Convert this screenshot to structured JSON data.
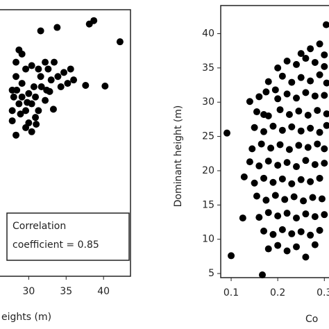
{
  "chart_data": [
    {
      "type": "scatter",
      "x_label": "eights (m)",
      "color": "#000000",
      "annotation": [
        "Correlation",
        "coefficient = 0.85"
      ],
      "xlim": [
        25.7,
        43.6
      ],
      "ylim": [
        4.4,
        43.5
      ],
      "xticks": [
        30,
        35,
        40
      ],
      "x": [
        31.6,
        33.8,
        38.1,
        38.7,
        42.2,
        40.2,
        37.6,
        33.3,
        32.8,
        30.4,
        30.0,
        28.7,
        29.1,
        31.3,
        32.6,
        33.4,
        33.9,
        34.7,
        35.6,
        36.0,
        34.3,
        32.2,
        31.3,
        30.9,
        29.6,
        28.3,
        27.8,
        28.3,
        29.1,
        30.0,
        28.7,
        27.8,
        29.6,
        30.4,
        30.9,
        31.7,
        33.0,
        35.2,
        32.2,
        30.4,
        29.6,
        28.3,
        27.8,
        29.1,
        28.0,
        28.4,
        28.9,
        29.8,
        30.7,
        31.6,
        32.4,
        31.0
      ],
      "values": [
        40.4,
        40.9,
        41.4,
        41.9,
        38.8,
        32.3,
        32.4,
        28.9,
        31.5,
        25.6,
        26.9,
        37.6,
        37.0,
        34.8,
        34.8,
        35.8,
        33.7,
        34.3,
        34.8,
        33.2,
        32.2,
        30.2,
        28.7,
        27.7,
        26.2,
        25.1,
        31.7,
        33.7,
        32.7,
        31.2,
        29.7,
        28.7,
        28.7,
        29.7,
        30.7,
        32.2,
        33.2,
        32.7,
        35.8,
        35.3,
        34.8,
        35.8,
        27.2,
        30.7,
        30.7,
        31.7,
        28.2,
        29.9,
        32.2,
        33.7,
        31.7,
        26.7
      ]
    },
    {
      "type": "scatter",
      "x_label": "Co",
      "y_label": "Dominant height (m)",
      "color": "#000000",
      "xlim": [
        0.0776,
        0.31
      ],
      "ylim": [
        4.4,
        44.1
      ],
      "xticks": [
        0.1,
        0.2,
        0.3
      ],
      "yticks": [
        5,
        10,
        15,
        20,
        25,
        30,
        35,
        40
      ],
      "x": [
        0.091,
        0.1,
        0.125,
        0.128,
        0.14,
        0.17,
        0.167,
        0.304,
        0.26,
        0.27,
        0.29,
        0.25,
        0.3,
        0.22,
        0.24,
        0.26,
        0.28,
        0.3,
        0.2,
        0.18,
        0.21,
        0.23,
        0.25,
        0.27,
        0.29,
        0.305,
        0.195,
        0.16,
        0.175,
        0.2,
        0.22,
        0.24,
        0.26,
        0.28,
        0.3,
        0.155,
        0.18,
        0.205,
        0.225,
        0.245,
        0.265,
        0.285,
        0.305,
        0.15,
        0.17,
        0.19,
        0.21,
        0.23,
        0.25,
        0.27,
        0.29,
        0.305,
        0.145,
        0.165,
        0.185,
        0.205,
        0.225,
        0.245,
        0.265,
        0.285,
        0.3,
        0.14,
        0.16,
        0.18,
        0.2,
        0.22,
        0.24,
        0.26,
        0.28,
        0.3,
        0.15,
        0.17,
        0.19,
        0.21,
        0.23,
        0.25,
        0.27,
        0.29,
        0.155,
        0.175,
        0.195,
        0.215,
        0.235,
        0.255,
        0.275,
        0.295,
        0.16,
        0.18,
        0.2,
        0.22,
        0.24,
        0.26,
        0.28,
        0.3,
        0.17,
        0.19,
        0.21,
        0.23,
        0.25,
        0.27,
        0.29,
        0.18,
        0.2,
        0.22,
        0.24,
        0.28
      ],
      "values": [
        25.5,
        7.6,
        13.1,
        19.1,
        30.1,
        28.2,
        4.8,
        41.3,
        7.4,
        37.8,
        38.5,
        37.1,
        36.9,
        36.0,
        35.5,
        36.4,
        35.8,
        35.2,
        35.0,
        33.0,
        33.8,
        32.9,
        33.6,
        33.1,
        34.0,
        32.8,
        31.8,
        30.8,
        31.5,
        30.5,
        31.2,
        30.6,
        31.4,
        30.9,
        31.0,
        28.6,
        28.0,
        28.9,
        28.2,
        28.7,
        28.1,
        28.8,
        28.3,
        26.3,
        25.7,
        26.5,
        25.9,
        26.4,
        25.8,
        26.2,
        25.6,
        26.6,
        23.2,
        23.9,
        23.3,
        23.8,
        23.1,
        23.7,
        23.4,
        23.9,
        23.2,
        21.3,
        20.7,
        21.4,
        20.8,
        21.2,
        20.6,
        21.5,
        20.9,
        21.1,
        18.2,
        18.9,
        18.3,
        18.8,
        18.1,
        18.7,
        18.4,
        18.9,
        16.3,
        15.7,
        16.4,
        15.8,
        16.2,
        15.6,
        16.1,
        15.9,
        13.2,
        13.9,
        13.4,
        13.8,
        13.1,
        13.7,
        13.3,
        13.6,
        11.2,
        10.7,
        11.4,
        10.8,
        11.1,
        10.6,
        11.3,
        8.6,
        9.1,
        8.3,
        8.9,
        9.2
      ]
    }
  ]
}
